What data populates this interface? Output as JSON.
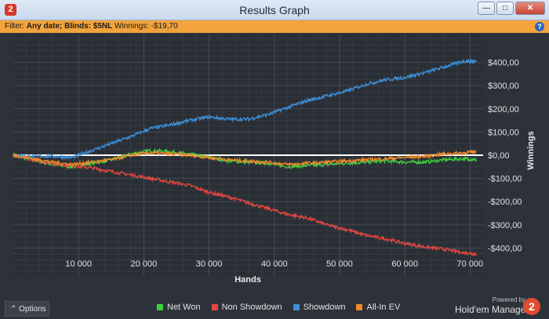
{
  "window": {
    "title": "Results Graph",
    "app_icon": "2",
    "buttons": {
      "minimize": "—",
      "maximize": "□",
      "close": "✕"
    }
  },
  "filter": {
    "label": "Filter:",
    "date": "Any date;",
    "blinds": "Blinds: $5NL",
    "winnings_label": "Winnings:",
    "winnings_value": "-$19,70"
  },
  "options_label": "Options",
  "powered_by": "Powered by",
  "brand": "Hold'em Manager",
  "brand_logo": "2",
  "chart_data": {
    "type": "line",
    "xlabel": "Hands",
    "ylabel": "Winnings",
    "xlim": [
      0,
      72000
    ],
    "ylim": [
      -520,
      520
    ],
    "x_ticks": [
      10000,
      20000,
      30000,
      40000,
      50000,
      60000,
      70000
    ],
    "x_tick_labels": [
      "10 000",
      "20 000",
      "30 000",
      "40 000",
      "50 000",
      "60 000",
      "70 000"
    ],
    "y_ticks": [
      400,
      300,
      200,
      100,
      0,
      -100,
      -200,
      -300,
      -400
    ],
    "y_tick_labels": [
      "$400,00",
      "$300,00",
      "$200,00",
      "$100,00",
      "$0,00",
      "-$100,00",
      "-$200,00",
      "-$300,00",
      "-$400,00"
    ],
    "grid": true,
    "zero_line": true,
    "series": [
      {
        "name": "Net Won",
        "color": "#3fcf3f",
        "x": [
          0,
          3000,
          6000,
          9000,
          12000,
          15000,
          18000,
          21000,
          24000,
          27000,
          30000,
          33000,
          36000,
          39000,
          42000,
          45000,
          48000,
          51000,
          54000,
          57000,
          60000,
          63000,
          66000,
          69000,
          71000
        ],
        "values": [
          0,
          -20,
          -40,
          -50,
          -35,
          -20,
          5,
          20,
          15,
          5,
          -10,
          -25,
          -30,
          -35,
          -50,
          -45,
          -40,
          -35,
          -30,
          -25,
          -30,
          -30,
          -20,
          -15,
          -20
        ]
      },
      {
        "name": "Non Showdown",
        "color": "#e2473f",
        "x": [
          0,
          3000,
          6000,
          9000,
          12000,
          15000,
          18000,
          21000,
          24000,
          27000,
          30000,
          33000,
          36000,
          39000,
          42000,
          45000,
          48000,
          51000,
          54000,
          57000,
          60000,
          63000,
          66000,
          69000,
          71000
        ],
        "values": [
          0,
          -20,
          -35,
          -45,
          -55,
          -70,
          -85,
          -100,
          -115,
          -130,
          -160,
          -180,
          -205,
          -230,
          -255,
          -270,
          -300,
          -320,
          -345,
          -360,
          -380,
          -395,
          -405,
          -420,
          -425
        ]
      },
      {
        "name": "Showdown",
        "color": "#3e8fd7",
        "x": [
          0,
          3000,
          6000,
          9000,
          12000,
          15000,
          18000,
          21000,
          24000,
          27000,
          30000,
          33000,
          36000,
          39000,
          42000,
          45000,
          48000,
          51000,
          54000,
          57000,
          60000,
          63000,
          66000,
          69000,
          71000
        ],
        "values": [
          0,
          -5,
          -5,
          -10,
          20,
          50,
          80,
          115,
          130,
          150,
          165,
          155,
          155,
          175,
          205,
          235,
          255,
          275,
          305,
          325,
          335,
          355,
          380,
          405,
          405
        ]
      },
      {
        "name": "All-In EV",
        "color": "#ef8a2c",
        "x": [
          0,
          3000,
          6000,
          9000,
          12000,
          15000,
          18000,
          21000,
          24000,
          27000,
          30000,
          33000,
          36000,
          39000,
          42000,
          45000,
          48000,
          51000,
          54000,
          57000,
          60000,
          63000,
          66000,
          69000,
          71000
        ],
        "values": [
          0,
          -15,
          -30,
          -40,
          -30,
          -20,
          0,
          10,
          5,
          0,
          -10,
          -20,
          -25,
          -30,
          -40,
          -35,
          -30,
          -25,
          -20,
          -15,
          -10,
          -5,
          5,
          10,
          15
        ]
      }
    ]
  }
}
